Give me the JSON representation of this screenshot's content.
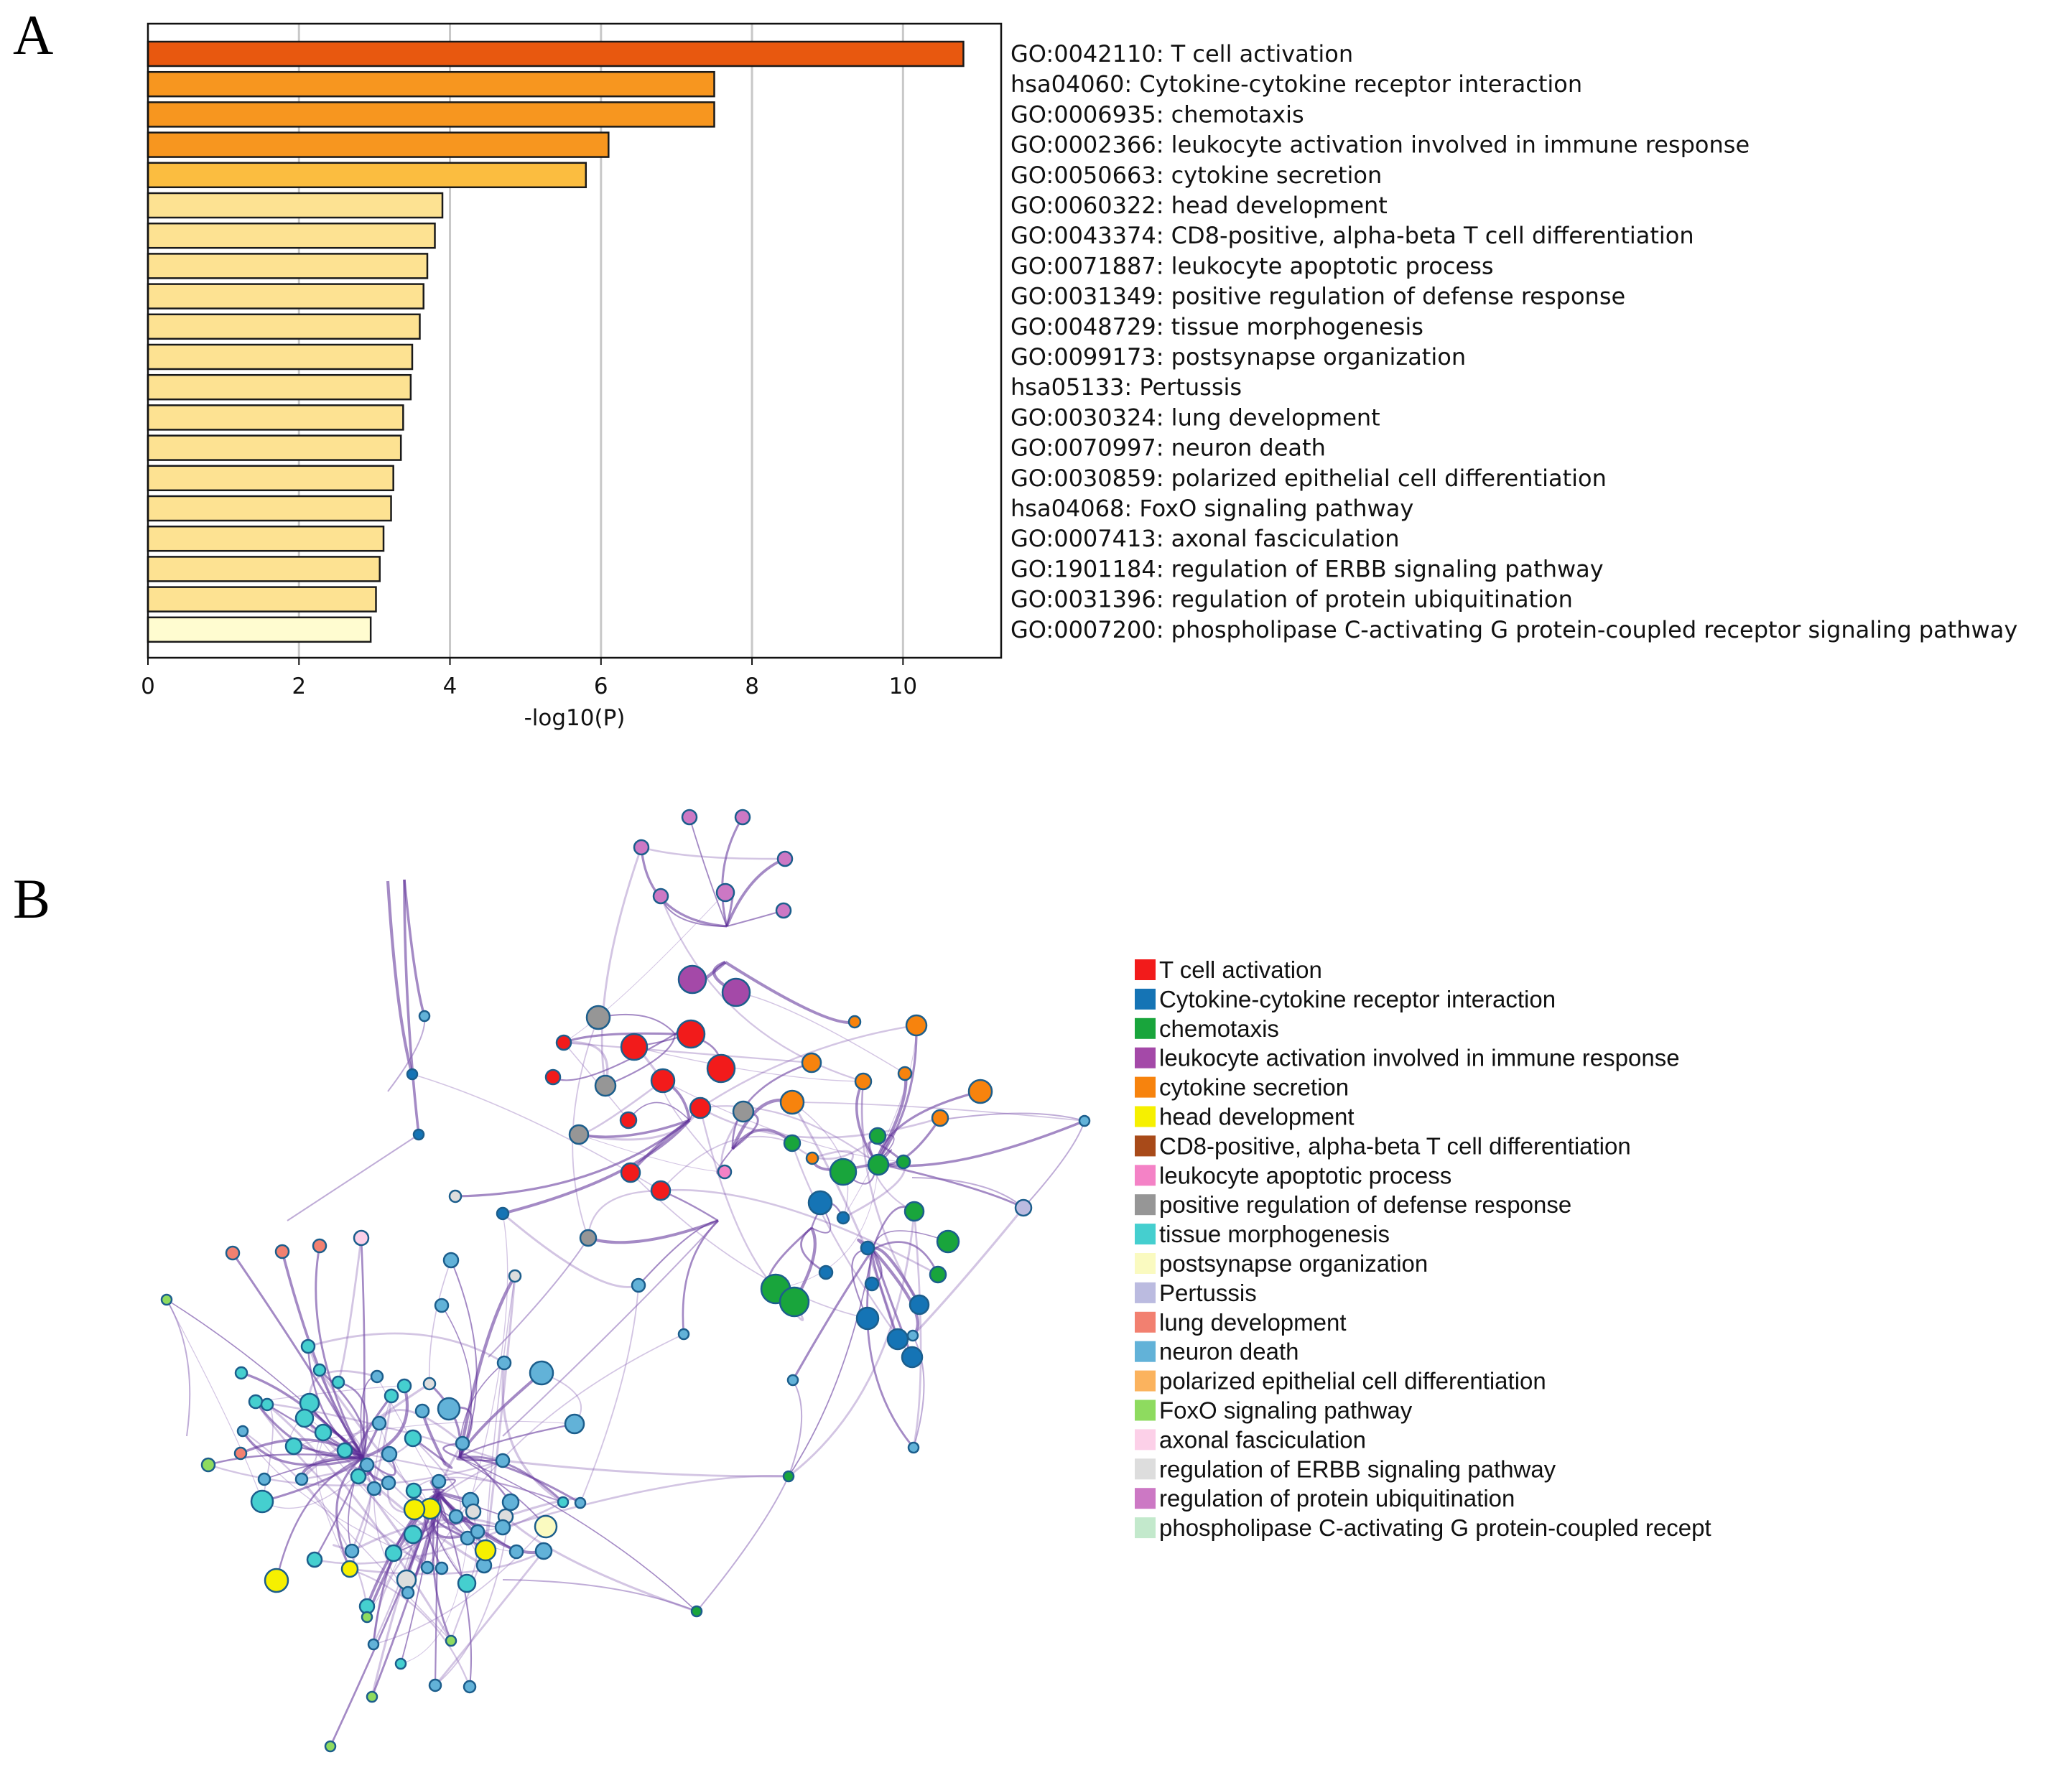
{
  "panel_labels": {
    "a": "A",
    "b": "B"
  },
  "chart_data": [
    {
      "type": "bar",
      "orientation": "horizontal",
      "panel": "A",
      "title": "",
      "xlabel": "-log10(P)",
      "ylabel": "",
      "xlim": [
        0,
        11.3
      ],
      "xticks": [
        0,
        2,
        4,
        6,
        8,
        10
      ],
      "grid": "vertical",
      "categories": [
        "GO:0042110: T cell activation",
        "hsa04060: Cytokine-cytokine receptor interaction",
        "GO:0006935: chemotaxis",
        "GO:0002366: leukocyte activation involved in immune response",
        "GO:0050663: cytokine secretion",
        "GO:0060322: head development",
        "GO:0043374: CD8-positive, alpha-beta T cell differentiation",
        "GO:0071887: leukocyte apoptotic process",
        "GO:0031349: positive regulation of defense response",
        "GO:0048729: tissue morphogenesis",
        "GO:0099173: postsynapse organization",
        "hsa05133: Pertussis",
        "GO:0030324: lung development",
        "GO:0070997: neuron death",
        "GO:0030859: polarized epithelial cell differentiation",
        "hsa04068: FoxO signaling pathway",
        "GO:0007413: axonal fasciculation",
        "GO:1901184: regulation of ERBB signaling pathway",
        "GO:0031396: regulation of protein ubiquitination",
        "GO:0007200: phospholipase C-activating G protein-coupled receptor signaling pathway"
      ],
      "values": [
        10.8,
        7.5,
        7.5,
        6.1,
        5.8,
        3.9,
        3.8,
        3.7,
        3.65,
        3.6,
        3.5,
        3.48,
        3.38,
        3.35,
        3.25,
        3.22,
        3.12,
        3.07,
        3.02,
        2.95
      ],
      "bar_colors": [
        "#e8580f",
        "#f7961f",
        "#f7961f",
        "#f7961f",
        "#fbbd40",
        "#fde292",
        "#fde292",
        "#fde292",
        "#fde292",
        "#fde292",
        "#fde292",
        "#fde292",
        "#fde292",
        "#fde292",
        "#fde292",
        "#fde292",
        "#fde292",
        "#fde292",
        "#fde292",
        "#fffcd0"
      ]
    },
    {
      "type": "network",
      "panel": "B",
      "legend": [
        {
          "label": "T cell activation",
          "color": "#f21b1b"
        },
        {
          "label": "Cytokine-cytokine receptor interaction",
          "color": "#1574b5"
        },
        {
          "label": "chemotaxis",
          "color": "#19a53c"
        },
        {
          "label": "leukocyte activation involved in immune response",
          "color": "#a449a8"
        },
        {
          "label": "cytokine secretion",
          "color": "#f7830d"
        },
        {
          "label": "head development",
          "color": "#f6f000"
        },
        {
          "label": "CD8-positive, alpha-beta T cell differentiation",
          "color": "#a84a19"
        },
        {
          "label": "leukocyte apoptotic process",
          "color": "#f482c6"
        },
        {
          "label": "positive regulation of defense response",
          "color": "#969696"
        },
        {
          "label": "tissue morphogenesis",
          "color": "#45cfcf"
        },
        {
          "label": "postsynapse organization",
          "color": "#fafac0"
        },
        {
          "label": "Pertussis",
          "color": "#bbbbe0"
        },
        {
          "label": "lung development",
          "color": "#f28070"
        },
        {
          "label": "neuron death",
          "color": "#62b2d8"
        },
        {
          "label": "polarized epithelial cell differentiation",
          "color": "#fbb35e"
        },
        {
          "label": "FoxO signaling pathway",
          "color": "#8edb5f"
        },
        {
          "label": "axonal fasciculation",
          "color": "#fcd0e8"
        },
        {
          "label": "regulation of ERBB signaling pathway",
          "color": "#dddddd"
        },
        {
          "label": "regulation of protein ubiquitination",
          "color": "#cc78c4"
        },
        {
          "label": "phospholipase C-activating G protein-coupled recept",
          "color": "#c3e9cc"
        }
      ]
    }
  ]
}
